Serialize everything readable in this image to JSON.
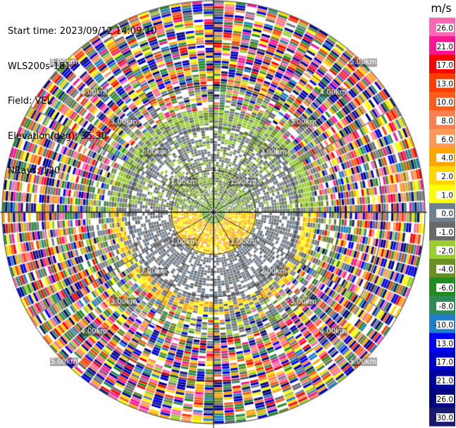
{
  "header": {
    "start_time": "Start time: 2023/09/12 14:09:10",
    "instrument": "WLS200s-181",
    "field": "Field: VEL",
    "elevation": "Elevation(deg): 35.30",
    "nrays": "NRays: 120"
  },
  "chart_data": {
    "type": "heatmap",
    "projection": "polar PPI",
    "range_rings_km": [
      1,
      2,
      3,
      4,
      5
    ],
    "ring_labels": [
      "1.00km",
      "2.00km",
      "3.00km",
      "4.00km",
      "5.00km"
    ],
    "colorbar": {
      "unit": "m/s",
      "tick_labels": [
        "26.0",
        "21.0",
        "17.0",
        "13.0",
        "10.0",
        "8.0",
        "6.0",
        "4.0",
        "2.0",
        "1.0",
        "0.0",
        "-1.0",
        "-2.0",
        "-4.0",
        "-6.0",
        "-8.0",
        "-10.0",
        "-13.0",
        "-17.0",
        "-21.0",
        "-26.0",
        "-30.0"
      ],
      "colors": [
        "#ff66b2",
        "#ff1493",
        "#ff0000",
        "#ff3b00",
        "#ff5a1a",
        "#ff7f50",
        "#ff9a5a",
        "#ffa500",
        "#ffd700",
        "#ffff00",
        "#708090",
        "#696969",
        "#9acd32",
        "#6b8e23",
        "#228b22",
        "#2e8b57",
        "#1e7fc8",
        "#0000ff",
        "#0000cd",
        "#0000a0",
        "#000080",
        "#191970"
      ]
    }
  }
}
